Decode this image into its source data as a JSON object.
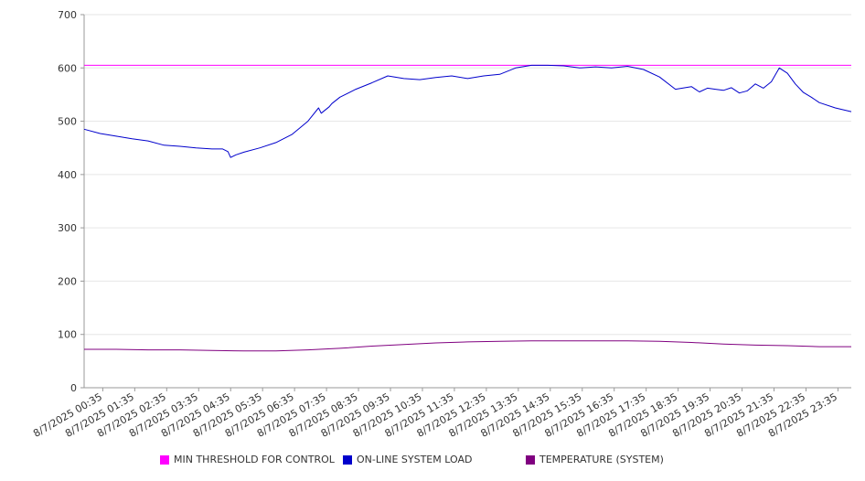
{
  "chart_data": {
    "type": "line",
    "title": "",
    "xlabel": "",
    "ylabel": "",
    "ylim": [
      0,
      700
    ],
    "y_ticks": [
      0,
      100,
      200,
      300,
      400,
      500,
      600,
      700
    ],
    "x_tick_labels": [
      "8/7/2025 00:35",
      "8/7/2025 01:35",
      "8/7/2025 02:35",
      "8/7/2025 03:35",
      "8/7/2025 04:35",
      "8/7/2025 05:35",
      "8/7/2025 06:35",
      "8/7/2025 07:35",
      "8/7/2025 08:35",
      "8/7/2025 09:35",
      "8/7/2025 10:35",
      "8/7/2025 11:35",
      "8/7/2025 12:35",
      "8/7/2025 13:35",
      "8/7/2025 14:35",
      "8/7/2025 15:35",
      "8/7/2025 16:35",
      "8/7/2025 17:35",
      "8/7/2025 18:35",
      "8/7/2025 19:35",
      "8/7/2025 20:35",
      "8/7/2025 21:35",
      "8/7/2025 22:35",
      "8/7/2025 23:35"
    ],
    "x_time_range": [
      "8/7/2025 00:00",
      "8/7/2025 24:00"
    ],
    "grid": "horizontal",
    "legend_position": "bottom",
    "series": [
      {
        "name": "MIN THRESHOLD FOR CONTROL",
        "color": "#ff00ff",
        "x": [
          "00:00",
          "24:00"
        ],
        "values": [
          605,
          605
        ]
      },
      {
        "name": "ON-LINE SYSTEM LOAD",
        "color": "#0000cc",
        "x": [
          "00:00",
          "00:30",
          "01:00",
          "01:30",
          "02:00",
          "02:30",
          "03:00",
          "03:30",
          "04:00",
          "04:20",
          "04:30",
          "04:35",
          "04:45",
          "05:00",
          "05:30",
          "06:00",
          "06:30",
          "07:00",
          "07:20",
          "07:25",
          "07:40",
          "07:45",
          "08:00",
          "08:30",
          "09:00",
          "09:30",
          "10:00",
          "10:30",
          "11:00",
          "11:30",
          "12:00",
          "12:30",
          "13:00",
          "13:30",
          "14:00",
          "14:30",
          "15:00",
          "15:30",
          "16:00",
          "16:30",
          "17:00",
          "17:30",
          "18:00",
          "18:30",
          "19:00",
          "19:15",
          "19:30",
          "19:45",
          "20:00",
          "20:15",
          "20:30",
          "20:45",
          "21:00",
          "21:15",
          "21:30",
          "21:45",
          "22:00",
          "22:15",
          "22:30",
          "22:45",
          "23:00",
          "23:30",
          "24:00"
        ],
        "values": [
          485,
          477,
          472,
          467,
          463,
          455,
          453,
          450,
          448,
          448,
          443,
          432,
          437,
          442,
          450,
          460,
          475,
          500,
          525,
          515,
          527,
          533,
          545,
          560,
          572,
          585,
          580,
          578,
          582,
          585,
          580,
          585,
          588,
          600,
          605,
          605,
          604,
          600,
          602,
          600,
          603,
          597,
          583,
          560,
          565,
          555,
          562,
          560,
          558,
          563,
          553,
          557,
          570,
          562,
          574,
          600,
          590,
          570,
          554,
          545,
          535,
          525,
          518
        ]
      },
      {
        "name": "TEMPERATURE (SYSTEM)",
        "color": "#800080",
        "x": [
          "00:00",
          "01:00",
          "02:00",
          "03:00",
          "04:00",
          "05:00",
          "06:00",
          "07:00",
          "08:00",
          "09:00",
          "10:00",
          "11:00",
          "12:00",
          "13:00",
          "14:00",
          "15:00",
          "16:00",
          "17:00",
          "18:00",
          "19:00",
          "20:00",
          "21:00",
          "22:00",
          "23:00",
          "24:00"
        ],
        "values": [
          72,
          72,
          71,
          71,
          70,
          69,
          69,
          71,
          74,
          78,
          81,
          84,
          86,
          87,
          88,
          88,
          88,
          88,
          87,
          85,
          82,
          80,
          79,
          77,
          77
        ]
      }
    ]
  }
}
